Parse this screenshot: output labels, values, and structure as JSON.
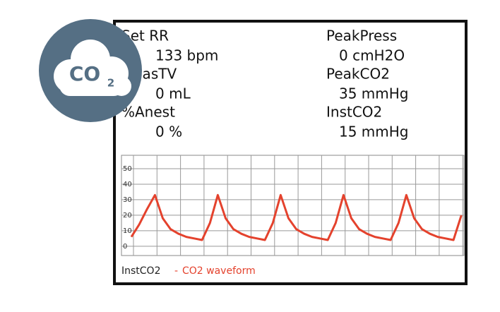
{
  "icon": {
    "label": "CO",
    "subscript": "2"
  },
  "readouts": [
    {
      "label": "Set RR",
      "value": "133 bpm"
    },
    {
      "label": "MeasTV",
      "value": "0 mL"
    },
    {
      "label": "%Anest",
      "value": "0 %"
    },
    {
      "label": "PeakPress",
      "value": "0 cmH2O"
    },
    {
      "label": "PeakCO2",
      "value": "35 mmHg"
    },
    {
      "label": "InstCO2",
      "value": "15 mmHg"
    }
  ],
  "chart_data": {
    "type": "line",
    "label": "InstCO2",
    "ylim": [
      -6,
      55
    ],
    "yticks": [
      0,
      10,
      20,
      30,
      40,
      50
    ],
    "grid": true,
    "series": [
      {
        "name": "CO2 waveform",
        "color": "#e4422d",
        "values": [
          6,
          14,
          24,
          33,
          18,
          11,
          8,
          6,
          5,
          4,
          15,
          33,
          18,
          11,
          8,
          6,
          5,
          4,
          15,
          33,
          18,
          11,
          8,
          6,
          5,
          4,
          15,
          33,
          18,
          11,
          8,
          6,
          5,
          4,
          15,
          33,
          18,
          11,
          8,
          6,
          5,
          4,
          20
        ]
      }
    ]
  }
}
